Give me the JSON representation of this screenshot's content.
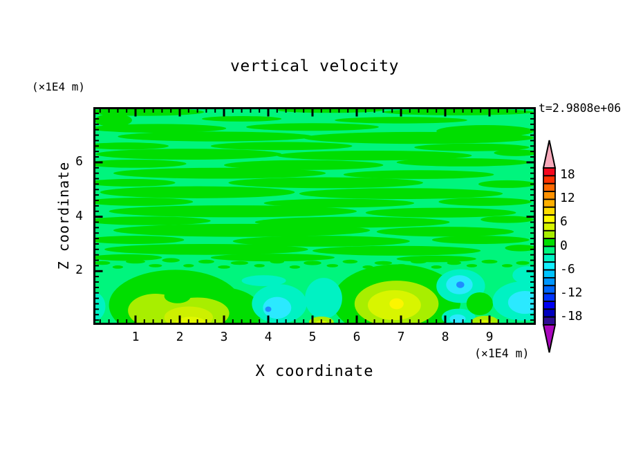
{
  "figure": {
    "title": "vertical velocity",
    "time_label": "t=2.9808e+06",
    "x_axis": {
      "label": "X coordinate",
      "unit": "(×1E4 m)",
      "tick_labels": [
        "1",
        "2",
        "3",
        "4",
        "5",
        "6",
        "7",
        "8",
        "9"
      ],
      "tick_values": [
        1,
        2,
        3,
        4,
        5,
        6,
        7,
        8,
        9
      ]
    },
    "y_axis": {
      "label": "Z coordinate",
      "unit": "(×1E4 m)",
      "tick_labels": [
        "2",
        "4",
        "6"
      ],
      "tick_values": [
        2,
        4,
        6
      ]
    },
    "colorbar": {
      "labels": [
        "18",
        "12",
        "6",
        "0",
        "-6",
        "-12",
        "-18"
      ],
      "label_boundary_indices": [
        1,
        4,
        7,
        10,
        13,
        16,
        19
      ]
    }
  },
  "chart_data": {
    "type": "heatmap",
    "subtype": "filled-contour",
    "title": "vertical velocity",
    "xlabel": "X coordinate (×1E4 m)",
    "ylabel": "Z coordinate (×1E4 m)",
    "time_stamp": "t=2.9808e+06",
    "x_range": [
      0,
      10
    ],
    "z_range": [
      0,
      8
    ],
    "contour_interval": 2,
    "levels_min": -20,
    "levels_max": 20,
    "legend_position": "right-vertical-colorbar-with-over-under-arrows",
    "grid": false,
    "palette_top_to_bottom": [
      "#F5081E",
      "#FF3200",
      "#FF6900",
      "#FF9100",
      "#FFAF00",
      "#FFDC00",
      "#FFFA00",
      "#D8F500",
      "#A8EE00",
      "#00DE00",
      "#00F57D",
      "#00F2C3",
      "#13EFFF",
      "#00C3FF",
      "#0096FF",
      "#0066FF",
      "#0034FF",
      "#0000F2",
      "#0000BE",
      "#2E0D93"
    ],
    "over_color": "#F7A9BA",
    "under_color": "#A907BD",
    "background_color": "#00F57D",
    "band_color": "#00DE00",
    "description": "Upper region (z > 2.3) filled with alternating wavy horizontal streaks of weakly positive (0..2, green) and weakly negative (-2..0, spring green) vertical velocity. Stronger convective extrema in the lowest layer (z < 2.3).",
    "notable_extrema": [
      {
        "x": 2.2,
        "z": 0.2,
        "value": 7,
        "sign": "updraft"
      },
      {
        "x": 7.0,
        "z": 0.8,
        "value": 8,
        "sign": "updraft"
      },
      {
        "x": 4.0,
        "z": 0.6,
        "value": -9,
        "sign": "downdraft"
      },
      {
        "x": 8.3,
        "z": 1.5,
        "value": -9,
        "sign": "downdraft"
      },
      {
        "x": 9.8,
        "z": 0.9,
        "value": -6,
        "sign": "downdraft"
      },
      {
        "x": 5.2,
        "z": 1.0,
        "value": -4,
        "sign": "downdraft"
      },
      {
        "x": 5.2,
        "z": 0.1,
        "value": 5,
        "sign": "updraft"
      },
      {
        "x": 8.9,
        "z": 0.1,
        "value": 5,
        "sign": "updraft"
      }
    ],
    "render": {
      "bands": [
        [
          1.2,
          7.85,
          1.35,
          0.14
        ],
        [
          5.4,
          7.92,
          1.2,
          0.1
        ],
        [
          8.3,
          7.85,
          1.7,
          0.12
        ],
        [
          0.5,
          7.55,
          0.42,
          0.24
        ],
        [
          3.4,
          7.6,
          0.9,
          0.1
        ],
        [
          7.0,
          7.55,
          1.5,
          0.12
        ],
        [
          1.5,
          7.25,
          1.55,
          0.16
        ],
        [
          5.0,
          7.3,
          1.5,
          0.14
        ],
        [
          8.9,
          7.15,
          1.1,
          0.22
        ],
        [
          2.8,
          6.95,
          2.2,
          0.18
        ],
        [
          7.4,
          6.9,
          2.6,
          0.22
        ],
        [
          0.8,
          6.6,
          0.95,
          0.13
        ],
        [
          4.3,
          6.6,
          1.6,
          0.15
        ],
        [
          8.6,
          6.55,
          1.3,
          0.14
        ],
        [
          2.2,
          6.3,
          2.1,
          0.2
        ],
        [
          6.4,
          6.25,
          2.2,
          0.18
        ],
        [
          9.6,
          6.35,
          0.5,
          0.12
        ],
        [
          1.0,
          5.95,
          1.15,
          0.15
        ],
        [
          4.8,
          5.9,
          1.8,
          0.18
        ],
        [
          8.4,
          6.0,
          1.5,
          0.15
        ],
        [
          2.9,
          5.6,
          2.4,
          0.2
        ],
        [
          7.4,
          5.55,
          1.7,
          0.16
        ],
        [
          0.9,
          5.25,
          1.0,
          0.14
        ],
        [
          5.3,
          5.25,
          2.2,
          0.2
        ],
        [
          9.4,
          5.2,
          0.65,
          0.14
        ],
        [
          2.4,
          4.9,
          2.2,
          0.22
        ],
        [
          7.0,
          4.85,
          2.3,
          0.2
        ],
        [
          1.1,
          4.55,
          1.2,
          0.15
        ],
        [
          5.6,
          4.5,
          1.7,
          0.16
        ],
        [
          8.9,
          4.55,
          1.05,
          0.15
        ],
        [
          3.2,
          4.2,
          2.8,
          0.22
        ],
        [
          7.9,
          4.15,
          1.7,
          0.18
        ],
        [
          1.3,
          3.85,
          1.4,
          0.16
        ],
        [
          5.9,
          3.8,
          2.2,
          0.2
        ],
        [
          9.4,
          3.9,
          0.6,
          0.13
        ],
        [
          3.4,
          3.5,
          2.9,
          0.24
        ],
        [
          8.0,
          3.45,
          1.55,
          0.18
        ],
        [
          1.0,
          3.15,
          1.1,
          0.15
        ],
        [
          5.2,
          3.1,
          2.0,
          0.2
        ],
        [
          8.8,
          3.15,
          1.1,
          0.15
        ],
        [
          2.6,
          2.8,
          2.3,
          0.2
        ],
        [
          6.9,
          2.75,
          1.9,
          0.18
        ],
        [
          9.7,
          2.85,
          0.35,
          0.12
        ],
        [
          4.1,
          2.5,
          1.4,
          0.14
        ],
        [
          0.8,
          2.5,
          0.8,
          0.12
        ],
        [
          7.8,
          2.45,
          0.9,
          0.12
        ]
      ],
      "speckles": [
        [
          0.25,
          2.3,
          0.18,
          0.07
        ],
        [
          0.6,
          2.15,
          0.12,
          0.06
        ],
        [
          1.0,
          2.35,
          0.22,
          0.07
        ],
        [
          1.45,
          2.2,
          0.15,
          0.06
        ],
        [
          1.8,
          2.4,
          0.2,
          0.08
        ],
        [
          2.2,
          2.2,
          0.12,
          0.06
        ],
        [
          2.6,
          2.35,
          0.18,
          0.07
        ],
        [
          3.0,
          2.15,
          0.14,
          0.06
        ],
        [
          3.35,
          2.3,
          0.2,
          0.07
        ],
        [
          3.8,
          2.2,
          0.12,
          0.06
        ],
        [
          4.2,
          2.35,
          0.16,
          0.07
        ],
        [
          4.6,
          2.15,
          0.12,
          0.06
        ],
        [
          5.0,
          2.3,
          0.2,
          0.08
        ],
        [
          5.45,
          2.2,
          0.13,
          0.06
        ],
        [
          5.85,
          2.35,
          0.17,
          0.07
        ],
        [
          6.25,
          2.15,
          0.12,
          0.06
        ],
        [
          6.6,
          2.3,
          0.2,
          0.07
        ],
        [
          7.0,
          2.2,
          0.13,
          0.06
        ],
        [
          7.4,
          2.35,
          0.18,
          0.07
        ],
        [
          7.8,
          2.15,
          0.12,
          0.06
        ],
        [
          8.2,
          2.3,
          0.16,
          0.07
        ],
        [
          8.6,
          2.2,
          0.12,
          0.06
        ],
        [
          9.0,
          2.35,
          0.18,
          0.07
        ],
        [
          9.4,
          2.2,
          0.12,
          0.06
        ],
        [
          9.75,
          2.3,
          0.15,
          0.07
        ]
      ],
      "features": [
        [
          "#00DE00",
          1.9,
          0.75,
          1.5,
          1.3
        ],
        [
          "#00DE00",
          2.95,
          0.5,
          0.9,
          0.9
        ],
        [
          "#A8EE00",
          1.45,
          0.55,
          0.62,
          0.62
        ],
        [
          "#A8EE00",
          2.4,
          0.45,
          0.72,
          0.58
        ],
        [
          "#00DE00",
          1.95,
          1.08,
          0.3,
          0.26
        ],
        [
          "#CDF000",
          2.2,
          0.3,
          0.55,
          0.4
        ],
        [
          "#E2F800",
          2.25,
          0.12,
          0.33,
          0.2
        ],
        [
          "#00DE00",
          6.9,
          0.9,
          1.45,
          1.35
        ],
        [
          "#A8EE00",
          6.9,
          0.8,
          0.95,
          0.85
        ],
        [
          "#D8F500",
          6.85,
          0.75,
          0.6,
          0.55
        ],
        [
          "#FCF500",
          6.9,
          0.8,
          0.16,
          0.2
        ],
        [
          "#00F2C3",
          4.25,
          0.8,
          0.62,
          0.72
        ],
        [
          "#2BE9FF",
          4.2,
          0.65,
          0.32,
          0.4
        ],
        [
          "#1E8CFF",
          4.0,
          0.6,
          0.07,
          0.1
        ],
        [
          "#00F2C3",
          3.9,
          1.65,
          0.5,
          0.2
        ],
        [
          "#00F2C3",
          5.25,
          1.0,
          0.42,
          0.75
        ],
        [
          "#00F2C3",
          0.02,
          0.7,
          0.3,
          0.55
        ],
        [
          "#00F2C3",
          8.35,
          1.45,
          0.55,
          0.62
        ],
        [
          "#2BE9FF",
          8.32,
          1.5,
          0.3,
          0.35
        ],
        [
          "#1E8CFF",
          8.34,
          1.5,
          0.09,
          0.12
        ],
        [
          "#00F2C3",
          8.3,
          0.3,
          0.38,
          0.32
        ],
        [
          "#2BE9FF",
          8.28,
          0.25,
          0.18,
          0.16
        ],
        [
          "#00DE00",
          8.78,
          0.8,
          0.3,
          0.42
        ],
        [
          "#00F2C3",
          9.75,
          0.9,
          0.68,
          0.72
        ],
        [
          "#2BE9FF",
          9.8,
          0.85,
          0.38,
          0.42
        ],
        [
          "#00F2C3",
          9.85,
          1.85,
          0.33,
          0.33
        ],
        [
          "#A8EE00",
          5.2,
          0.13,
          0.28,
          0.2
        ],
        [
          "#D8F500",
          5.2,
          0.08,
          0.14,
          0.1
        ],
        [
          "#A8EE00",
          8.9,
          0.14,
          0.3,
          0.22
        ],
        [
          "#D8F500",
          8.9,
          0.1,
          0.15,
          0.11
        ]
      ]
    }
  }
}
